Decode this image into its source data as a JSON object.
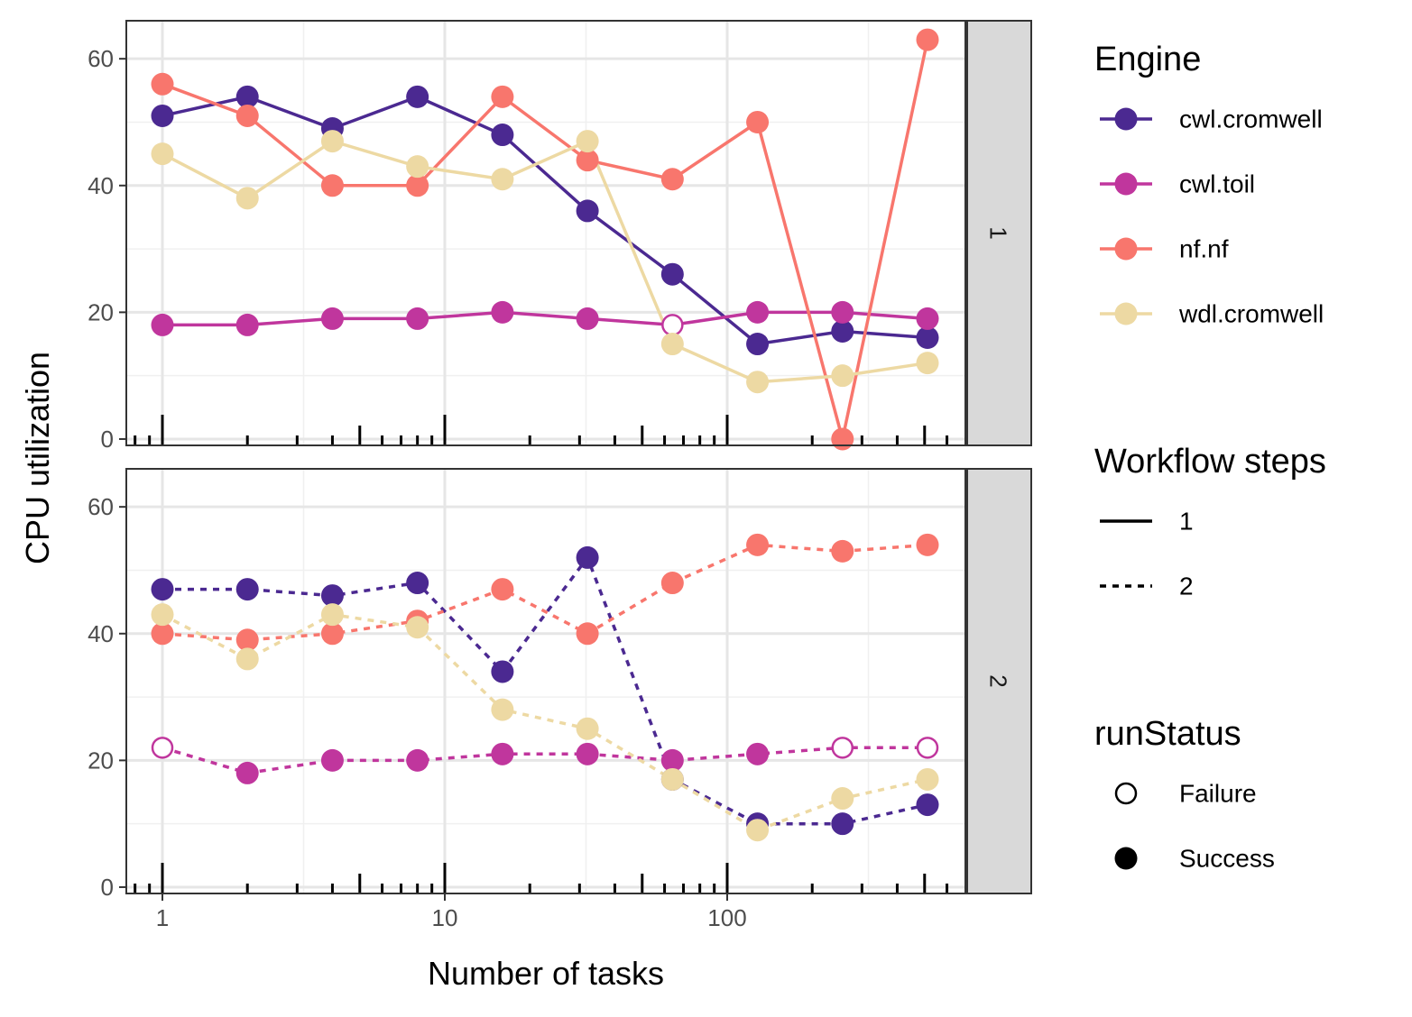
{
  "chart_data": {
    "type": "line",
    "xlabel": "Number of tasks",
    "ylabel": "CPU utilization",
    "x_scale": "log10",
    "x_ticks": [
      1,
      10,
      100
    ],
    "x_tick_labels": [
      "1",
      "10",
      "100"
    ],
    "y_ticks": [
      0,
      20,
      40,
      60
    ],
    "y_tick_labels": [
      "0",
      "20",
      "40",
      "60"
    ],
    "ylim": [
      -1,
      66
    ],
    "x": [
      1,
      2,
      4,
      8,
      16,
      32,
      64,
      128,
      256,
      512
    ],
    "facet_variable": "Workflow steps",
    "panels": [
      {
        "strip": "1",
        "linetype": "solid",
        "series": [
          {
            "name": "cwl.cromwell",
            "color": "#4B2991",
            "values": [
              51,
              54,
              49,
              54,
              48,
              36,
              26,
              15,
              17,
              16
            ],
            "status": [
              "Success",
              "Success",
              "Success",
              "Success",
              "Success",
              "Success",
              "Success",
              "Success",
              "Success",
              "Success"
            ]
          },
          {
            "name": "cwl.toil",
            "color": "#C0369D",
            "values": [
              18,
              18,
              19,
              19,
              20,
              19,
              18,
              20,
              20,
              19
            ],
            "status": [
              "Success",
              "Success",
              "Success",
              "Success",
              "Success",
              "Success",
              "Failure",
              "Success",
              "Success",
              "Success"
            ]
          },
          {
            "name": "nf.nf",
            "color": "#F8766D",
            "values": [
              56,
              51,
              40,
              40,
              54,
              44,
              41,
              50,
              0,
              63
            ],
            "status": [
              "Success",
              "Success",
              "Success",
              "Success",
              "Success",
              "Success",
              "Success",
              "Success",
              "Success",
              "Success"
            ]
          },
          {
            "name": "wdl.cromwell",
            "color": "#EDD9A3",
            "values": [
              45,
              38,
              47,
              43,
              41,
              47,
              15,
              9,
              10,
              12
            ],
            "status": [
              "Success",
              "Success",
              "Success",
              "Success",
              "Success",
              "Success",
              "Success",
              "Success",
              "Success",
              "Success"
            ]
          }
        ]
      },
      {
        "strip": "2",
        "linetype": "dashed",
        "series": [
          {
            "name": "cwl.cromwell",
            "color": "#4B2991",
            "values": [
              47,
              47,
              46,
              48,
              34,
              52,
              17,
              10,
              10,
              13
            ],
            "status": [
              "Success",
              "Success",
              "Success",
              "Success",
              "Success",
              "Success",
              "Success",
              "Success",
              "Success",
              "Success"
            ]
          },
          {
            "name": "cwl.toil",
            "color": "#C0369D",
            "values": [
              22,
              18,
              20,
              20,
              21,
              21,
              20,
              21,
              22,
              22
            ],
            "status": [
              "Failure",
              "Success",
              "Success",
              "Success",
              "Success",
              "Success",
              "Success",
              "Success",
              "Failure",
              "Failure"
            ]
          },
          {
            "name": "nf.nf",
            "color": "#F8766D",
            "values": [
              40,
              39,
              40,
              42,
              47,
              40,
              48,
              54,
              53,
              54
            ],
            "status": [
              "Success",
              "Success",
              "Success",
              "Success",
              "Success",
              "Success",
              "Success",
              "Success",
              "Success",
              "Success"
            ]
          },
          {
            "name": "wdl.cromwell",
            "color": "#EDD9A3",
            "values": [
              43,
              36,
              43,
              41,
              28,
              25,
              17,
              9,
              14,
              17
            ],
            "status": [
              "Success",
              "Success",
              "Success",
              "Success",
              "Success",
              "Success",
              "Success",
              "Success",
              "Success",
              "Success"
            ]
          }
        ]
      }
    ],
    "legends": [
      {
        "title": "Engine",
        "items": [
          {
            "label": "cwl.cromwell",
            "color": "#4B2991"
          },
          {
            "label": "cwl.toil",
            "color": "#C0369D"
          },
          {
            "label": "nf.nf",
            "color": "#F8766D"
          },
          {
            "label": "wdl.cromwell",
            "color": "#EDD9A3"
          }
        ]
      },
      {
        "title": "Workflow steps",
        "items": [
          {
            "label": "1",
            "linetype": "solid"
          },
          {
            "label": "2",
            "linetype": "dashed"
          }
        ]
      },
      {
        "title": "runStatus",
        "items": [
          {
            "label": "Failure",
            "shape": "open-circle"
          },
          {
            "label": "Success",
            "shape": "filled-circle"
          }
        ]
      }
    ],
    "legend_position": "right",
    "grid": true,
    "rug_ticks": "log-scale minor ticks along bottom of each panel"
  }
}
